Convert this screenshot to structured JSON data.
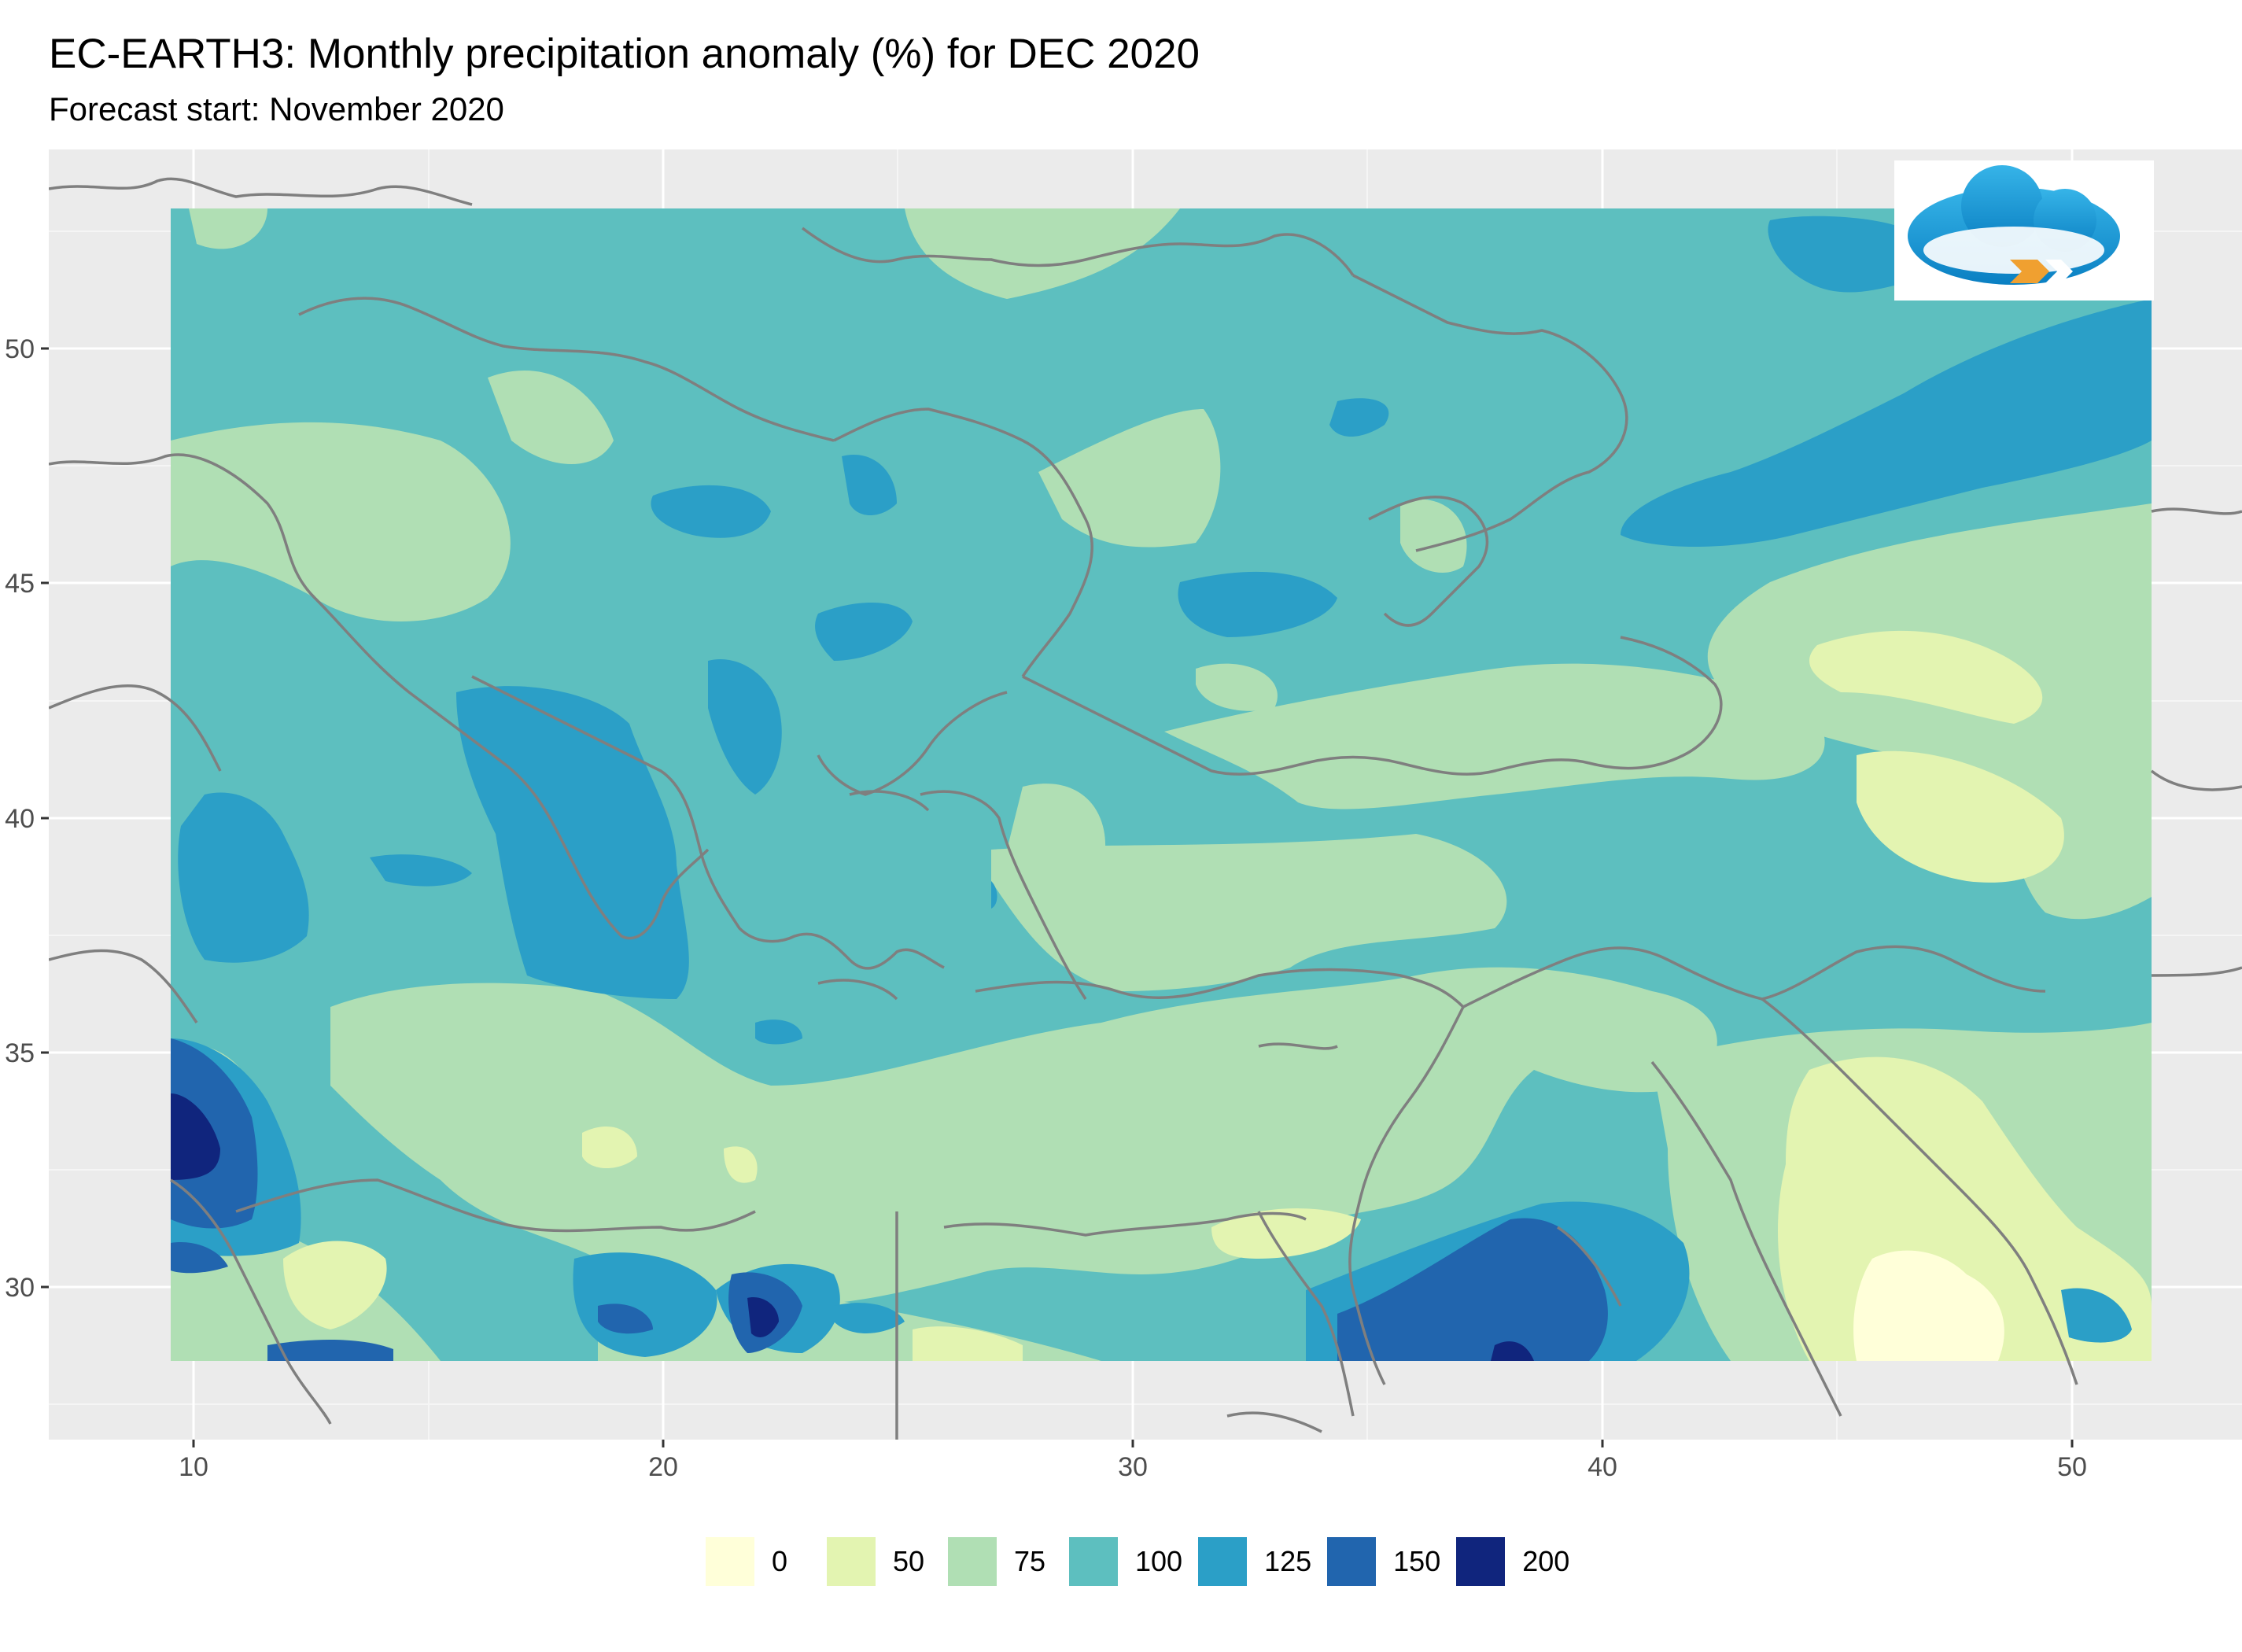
{
  "header": {
    "title": "EC-EARTH3: Monthly precipitation anomaly (%) for DEC 2020",
    "subtitle": "Forecast start: November 2020"
  },
  "axes": {
    "x_ticks": [
      "10",
      "20",
      "30",
      "40",
      "50"
    ],
    "y_ticks": [
      "50",
      "45",
      "40",
      "35",
      "30"
    ]
  },
  "legend": {
    "items": [
      {
        "label": "0",
        "color": "#ffffd9"
      },
      {
        "label": "50",
        "color": "#e3f4b1"
      },
      {
        "label": "75",
        "color": "#b0dfb4"
      },
      {
        "label": "100",
        "color": "#5dbfbf"
      },
      {
        "label": "125",
        "color": "#2b9fc7"
      },
      {
        "label": "150",
        "color": "#2165ae"
      },
      {
        "label": "200",
        "color": "#10257d"
      }
    ]
  },
  "colors": {
    "panel_background": "#ebebeb",
    "grid_major": "#ffffff",
    "coastline": "#7f7f7f"
  },
  "logo": {
    "icon": "cloud-logo-icon"
  }
}
